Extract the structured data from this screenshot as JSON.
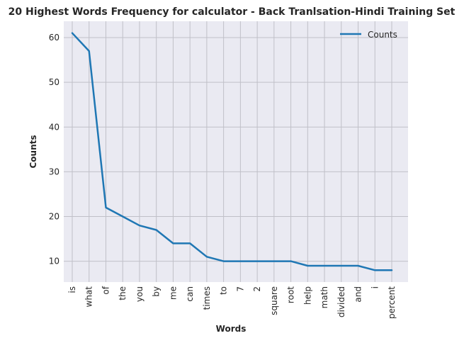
{
  "chart_data": {
    "type": "line",
    "title": "20 Highest Words Frequency for calculator - Back Tranlsation-Hindi Training Set",
    "xlabel": "Words",
    "ylabel": "Counts",
    "categories": [
      "is",
      "what",
      "of",
      "the",
      "you",
      "by",
      "me",
      "can",
      "times",
      "to",
      "7",
      "2",
      "square",
      "root",
      "help",
      "math",
      "divided",
      "and",
      "i",
      "percent"
    ],
    "series": [
      {
        "name": "Counts",
        "values": [
          61,
          57,
          22,
          20,
          18,
          17,
          14,
          14,
          11,
          10,
          10,
          10,
          10,
          10,
          9,
          9,
          9,
          9,
          8,
          8
        ],
        "color": "#1f77b4"
      }
    ],
    "ylim": [
      5.35,
      63.65
    ],
    "yticks": [
      10,
      20,
      30,
      40,
      50,
      60
    ],
    "grid": true,
    "legend_position": "top-right",
    "background": "#eaeaf2",
    "grid_color": "#c0c0c8"
  }
}
